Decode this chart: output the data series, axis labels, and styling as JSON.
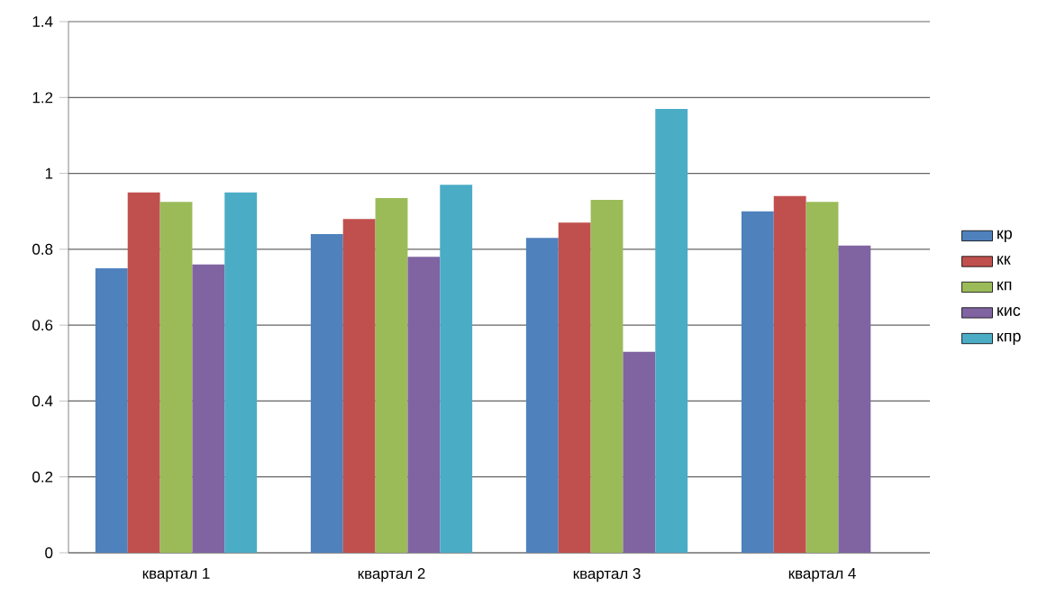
{
  "chart_data": {
    "type": "bar",
    "categories": [
      "квартал 1",
      "квартал 2",
      "квартал 3",
      "квартал 4"
    ],
    "series": [
      {
        "name": "кр",
        "color": "#4f81bd",
        "values": [
          0.75,
          0.84,
          0.83,
          0.9
        ]
      },
      {
        "name": "кк",
        "color": "#c0504d",
        "values": [
          0.95,
          0.88,
          0.87,
          0.94
        ]
      },
      {
        "name": "кп",
        "color": "#9bbb59",
        "values": [
          0.925,
          0.935,
          0.93,
          0.925
        ]
      },
      {
        "name": "кис",
        "color": "#8064a2",
        "values": [
          0.76,
          0.78,
          0.53,
          0.81
        ]
      },
      {
        "name": "кпр",
        "color": "#4bacc6",
        "values": [
          0.95,
          0.97,
          1.17,
          null
        ]
      }
    ],
    "ylim": [
      0,
      1.4
    ],
    "yticks": [
      0,
      0.2,
      0.4,
      0.6,
      0.8,
      1,
      1.2,
      1.4
    ],
    "grid": "y",
    "legend": "right"
  }
}
